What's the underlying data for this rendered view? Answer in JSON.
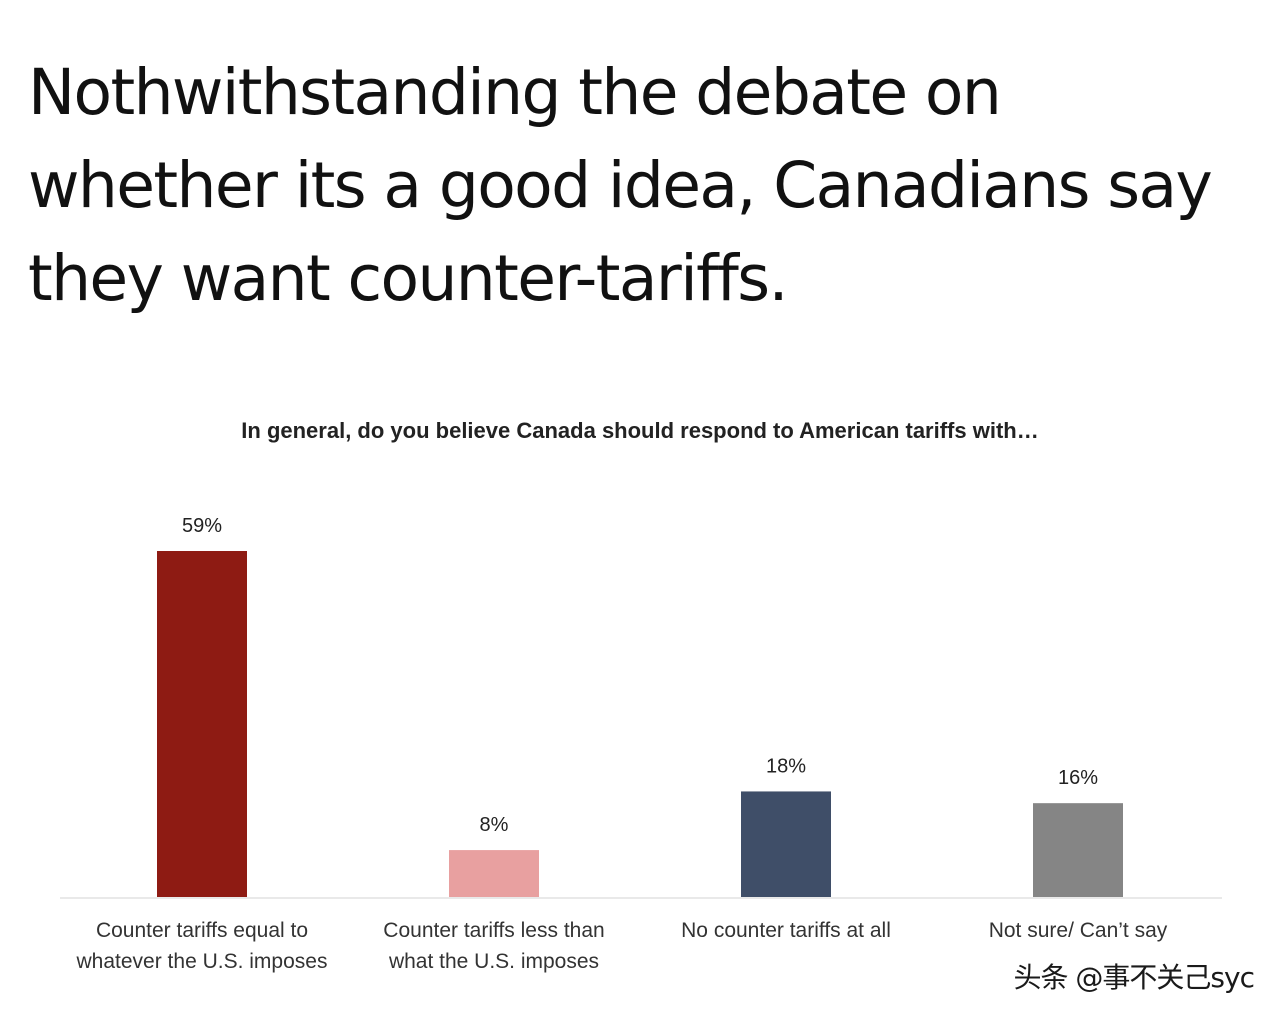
{
  "post": {
    "headline": "Nothwithstanding the debate on whether its a good idea, Canadians say they want counter-tariffs."
  },
  "chart_data": {
    "type": "bar",
    "title": "In general, do you believe Canada should respond to American tariffs with…",
    "categories": [
      [
        "Counter tariffs equal to",
        "whatever the U.S. imposes"
      ],
      [
        "Counter tariffs less than",
        "what the U.S. imposes"
      ],
      [
        "No counter tariffs at all"
      ],
      [
        "Not sure/ Can’t say"
      ]
    ],
    "values": [
      59,
      8,
      18,
      16
    ],
    "value_labels": [
      "59%",
      "8%",
      "18%",
      "16%"
    ],
    "colors": [
      "#8e1b13",
      "#e8a0a0",
      "#3f4e68",
      "#858585"
    ],
    "ylim": [
      0,
      59
    ],
    "grid": false,
    "legend": "none"
  },
  "watermark": {
    "text": "头条 @事不关己syc"
  }
}
